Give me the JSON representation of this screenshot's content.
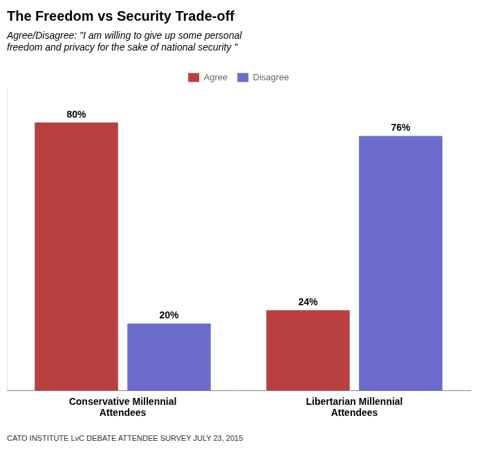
{
  "chart_data": {
    "type": "bar",
    "title": "The Freedom vs Security Trade-off",
    "subtitle": "Agree/Disagree: \"I am willing to give up some personal\nfreedom and privacy for the sake of national security \"",
    "categories": [
      "Conservative Millennial\nAttendees",
      "Libertarian Millennial\nAttendees"
    ],
    "series": [
      {
        "name": "Agree",
        "color": "#b94040",
        "values": [
          80,
          24
        ],
        "value_labels": [
          "80%",
          "24%"
        ]
      },
      {
        "name": "Disagree",
        "color": "#6b6bcc",
        "values": [
          20,
          76
        ],
        "value_labels": [
          "20%",
          "76%"
        ]
      }
    ],
    "ylim": [
      0,
      90
    ],
    "grid": false,
    "legend": "top",
    "data_labels": true,
    "tick_labels": "x",
    "footnote": "CATO INSTITUTE LvC DEBATE ATTENDEE SURVEY JULY 23, 2015"
  }
}
